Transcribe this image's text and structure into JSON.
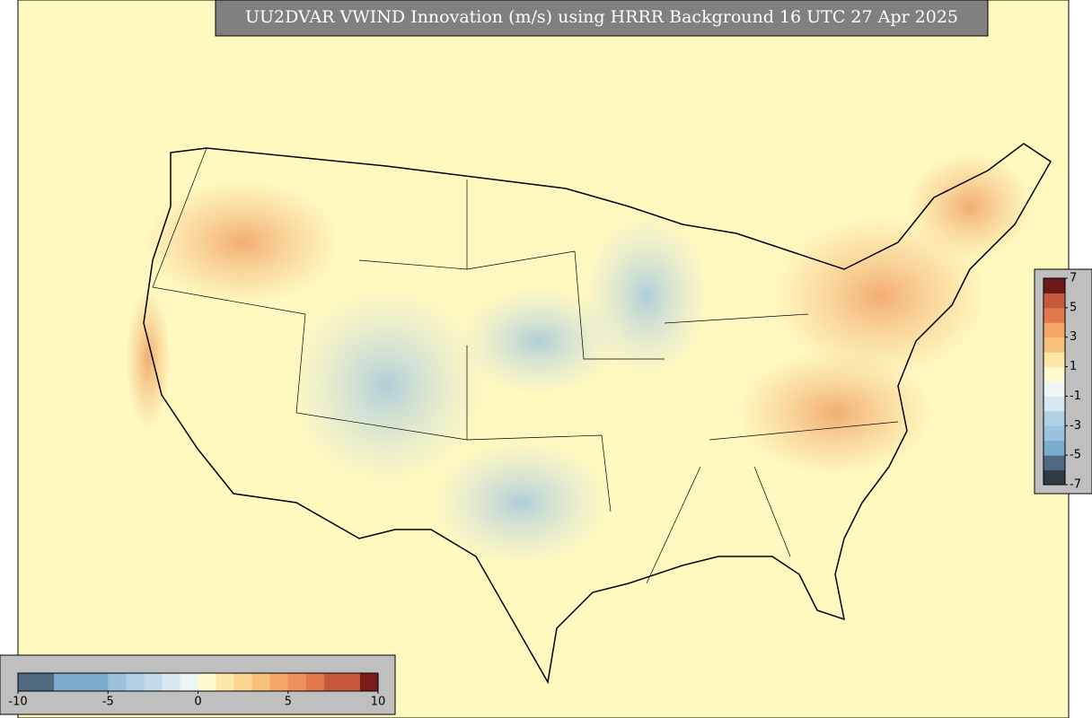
{
  "title": "UU2DVAR VWIND Innovation (m/s) using HRRR Background 16 UTC 27 Apr 2025",
  "colorbar_bottom": {
    "range": [
      -10,
      10
    ],
    "ticks": [
      -10,
      -5,
      0,
      5,
      10
    ],
    "colors": [
      "#4f6a80",
      "#4f6a80",
      "#7aaacc",
      "#7aaacc",
      "#7aaacc",
      "#9cc3dd",
      "#b0d0e6",
      "#c3dbec",
      "#d8e8f2",
      "#eef5f5",
      "#fffbd0",
      "#fde8a8",
      "#fcd592",
      "#f9c07c",
      "#f5a766",
      "#ee915a",
      "#e07a4c",
      "#c75a3e",
      "#c75a3e",
      "#7a1c1c"
    ]
  },
  "colorbar_right": {
    "range": [
      -7,
      7
    ],
    "ticks": [
      7,
      5,
      3,
      1,
      -1,
      -3,
      -5,
      -7
    ],
    "colors": [
      "#2f3a44",
      "#4f6a80",
      "#7aaacc",
      "#9cc3dd",
      "#b0d0e6",
      "#d8e8f2",
      "#eef5f5",
      "#fffbd0",
      "#fde8a8",
      "#f9c07c",
      "#f5a766",
      "#e07a4c",
      "#c75a3e",
      "#6b1a1a"
    ]
  }
}
